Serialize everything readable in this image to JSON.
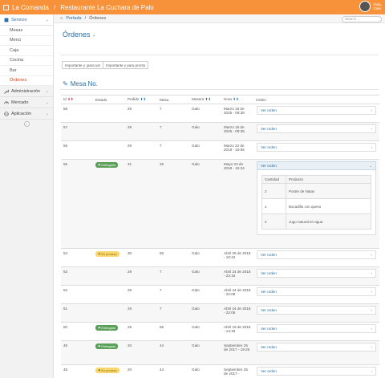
{
  "header": {
    "app_name": "La Comanda",
    "separator": "/",
    "restaurant": "Restaurante La Cuchara de Palo",
    "greeting": "Hola,",
    "user_name": "Galo"
  },
  "sidebar": {
    "groups": [
      {
        "label": "Servicio",
        "icon": "dashboard-icon"
      },
      {
        "label": "Administración",
        "icon": "wrench-icon"
      },
      {
        "label": "Mercado",
        "icon": "gauge-icon"
      },
      {
        "label": "Aplicación",
        "icon": "globe-icon"
      }
    ],
    "items": [
      "Mesas",
      "Menú",
      "Caja",
      "Cocina",
      "Bar",
      "Órdenes"
    ]
  },
  "breadcrumb": {
    "home": "Portada",
    "separator": "/",
    "current": "Órdenes"
  },
  "search": {
    "placeholder": "Search ..."
  },
  "page": {
    "title": "Órdenes",
    "subtitle": "»"
  },
  "tabs": [
    "Importante y ¡para ya!",
    "Importante y para pronto"
  ],
  "section": {
    "title": "Mesa No."
  },
  "table": {
    "columns": [
      "Id",
      "Estado",
      "Pedido",
      "Mesa",
      "Mesero",
      "Hora",
      "Orden"
    ],
    "view_label": "Ver orden",
    "rows": [
      {
        "id": "58",
        "status": "",
        "pedido": "29",
        "mesa": "7",
        "mesero": "Galo",
        "hora": "Marzo 18 de 2025 - 09:38"
      },
      {
        "id": "57",
        "status": "",
        "pedido": "29",
        "mesa": "7",
        "mesero": "Galo",
        "hora": "Marzo 18 de 2025 - 09:35"
      },
      {
        "id": "56",
        "status": "",
        "pedido": "29",
        "mesa": "7",
        "mesero": "Galo",
        "hora": "Marzo 22 de 2019 - 19:55"
      },
      {
        "id": "55",
        "status": "Entregado",
        "pedido": "31",
        "mesa": "25",
        "mesero": "Galo",
        "hora": "Mayo 23 de 2018 - 16:34"
      },
      {
        "id": "54",
        "status": "En proceso",
        "pedido": "30",
        "mesa": "56",
        "mesero": "Galo",
        "hora": "Abril 26 de 2018 - 10:42"
      },
      {
        "id": "53",
        "status": "",
        "pedido": "29",
        "mesa": "7",
        "mesero": "Galo",
        "hora": "Abril 24 de 2018 - 22:16"
      },
      {
        "id": "52",
        "status": "",
        "pedido": "29",
        "mesa": "7",
        "mesero": "Galo",
        "hora": "Abril 24 de 2018 - 22:08"
      },
      {
        "id": "51",
        "status": "",
        "pedido": "29",
        "mesa": "7",
        "mesero": "Galo",
        "hora": "Abril 24 de 2018 - 22:05"
      },
      {
        "id": "50",
        "status": "Entregado",
        "pedido": "28",
        "mesa": "66",
        "mesero": "Galo",
        "hora": "Abril 19 de 2018 - 14:46"
      },
      {
        "id": "49",
        "status": "Entregado",
        "pedido": "20",
        "mesa": "44",
        "mesero": "Galo",
        "hora": "Septiembre 25 de 2017 - 19:25"
      },
      {
        "id": "48",
        "status": "En proceso",
        "pedido": "20",
        "mesa": "44",
        "mesero": "Galo",
        "hora": "Septiembre 25 de 2017 -"
      }
    ],
    "detail": {
      "columns": [
        "Cantidad",
        "Producto"
      ],
      "rows": [
        {
          "qty": "2",
          "product": "Postre de Natas"
        },
        {
          "qty": "1",
          "product": "Bocadillo con queso"
        },
        {
          "qty": "2",
          "product": "Jugo natural en agua"
        }
      ]
    }
  },
  "colors": {
    "accent": "#f7923a",
    "link": "#2a6ea6",
    "green": "#5aa05a",
    "yellow": "#f8d771"
  }
}
